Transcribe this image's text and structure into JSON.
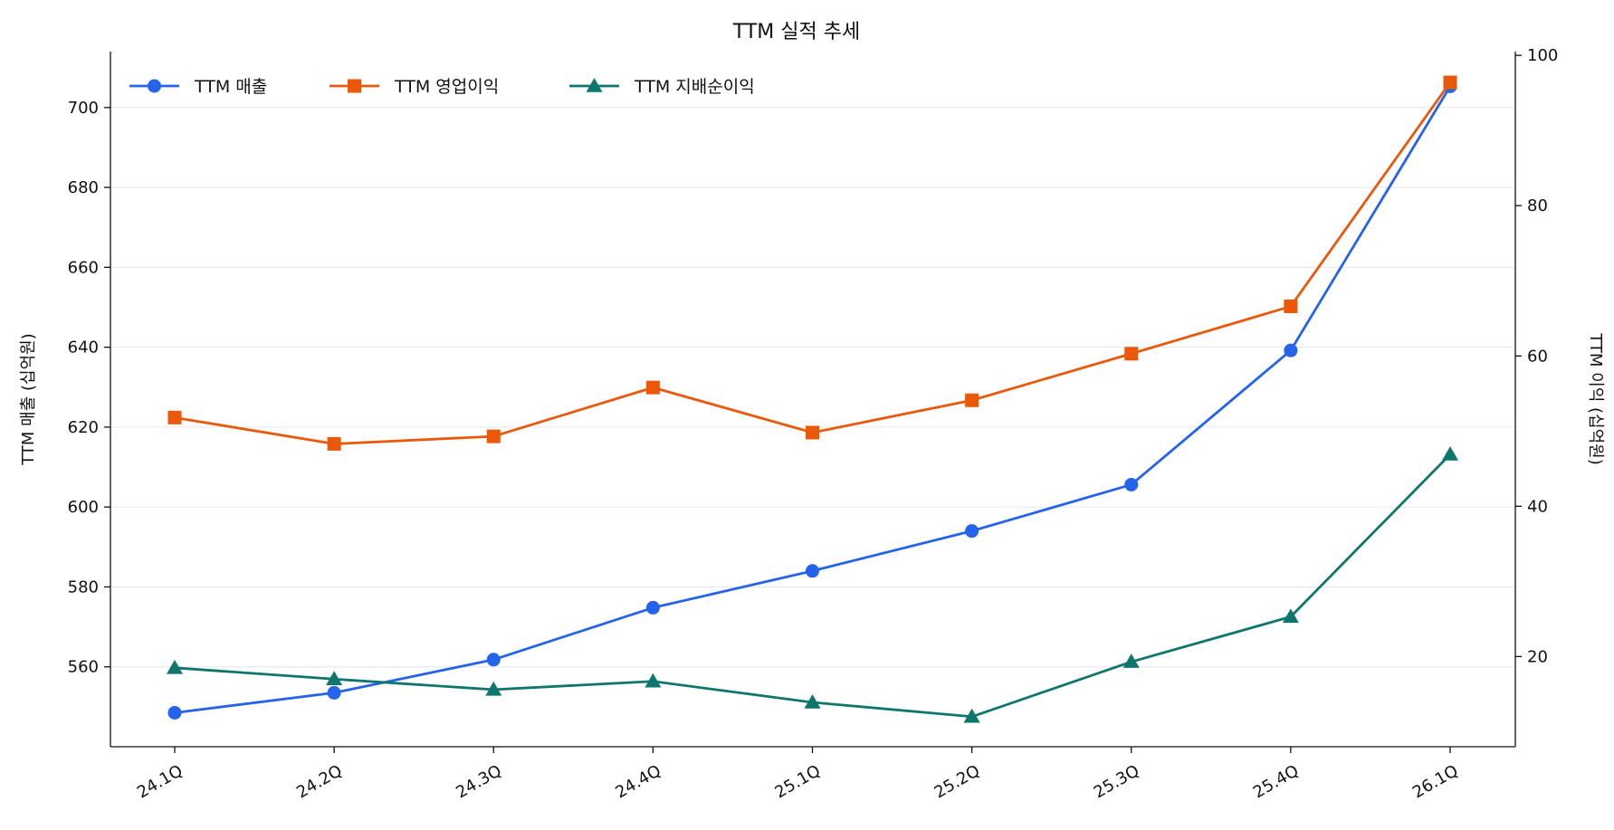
{
  "chart_data": {
    "type": "line",
    "title": "TTM 실적 추세",
    "categories": [
      "24.1Q",
      "24.2Q",
      "24.3Q",
      "24.4Q",
      "25.1Q",
      "25.2Q",
      "25.3Q",
      "25.4Q",
      "26.1Q"
    ],
    "y_left": {
      "label": "TTM 매출 (십억원)",
      "range": [
        540,
        714
      ],
      "ticks": [
        560,
        580,
        600,
        620,
        640,
        660,
        680,
        700
      ]
    },
    "y_right": {
      "label": "TTM 이익 (십억원)",
      "range": [
        8,
        100.5
      ],
      "ticks": [
        20,
        40,
        60,
        80,
        100
      ]
    },
    "grid": "horizontal",
    "legend": "top-left",
    "series": [
      {
        "name": "TTM 매출",
        "axis": "left",
        "marker": "circle",
        "color": "#2563eb",
        "values": [
          548.5,
          553.5,
          561.8,
          574.8,
          584.0,
          594.0,
          605.6,
          639.2,
          705.3
        ]
      },
      {
        "name": "TTM 영업이익",
        "axis": "right",
        "marker": "square",
        "color": "#ea580c",
        "values": [
          51.8,
          48.3,
          49.3,
          55.8,
          49.8,
          54.1,
          60.3,
          66.6,
          96.4
        ]
      },
      {
        "name": "TTM 지배순이익",
        "axis": "right",
        "marker": "triangle",
        "color": "#0f766e",
        "values": [
          18.5,
          17.0,
          15.6,
          16.7,
          13.9,
          12.0,
          19.3,
          25.3,
          46.9
        ]
      }
    ]
  }
}
